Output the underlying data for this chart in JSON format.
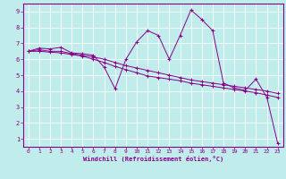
{
  "title": "",
  "xlabel": "Windchill (Refroidissement éolien,°C)",
  "bg_color": "#c0ecec",
  "line_color": "#880088",
  "grid_color": "#ffffff",
  "xlim": [
    -0.5,
    23.5
  ],
  "ylim": [
    0.5,
    9.5
  ],
  "xticks": [
    0,
    1,
    2,
    3,
    4,
    5,
    6,
    7,
    8,
    9,
    10,
    11,
    12,
    13,
    14,
    15,
    16,
    17,
    18,
    19,
    20,
    21,
    22,
    23
  ],
  "yticks": [
    1,
    2,
    3,
    4,
    5,
    6,
    7,
    8,
    9
  ],
  "line1_x": [
    0,
    1,
    2,
    3,
    4,
    5,
    6,
    7,
    8,
    9,
    10,
    11,
    12,
    13,
    14,
    15,
    16,
    17,
    18,
    19,
    20,
    21,
    22,
    23
  ],
  "line1_y": [
    6.5,
    6.7,
    6.65,
    6.75,
    6.4,
    6.35,
    6.25,
    5.5,
    4.15,
    6.0,
    7.1,
    7.8,
    7.5,
    6.0,
    7.5,
    9.1,
    8.5,
    7.8,
    4.5,
    4.2,
    4.05,
    4.75,
    3.6,
    0.7
  ],
  "line2_x": [
    0,
    1,
    2,
    3,
    4,
    5,
    6,
    7,
    8,
    9,
    10,
    11,
    12,
    13,
    14,
    15,
    16,
    17,
    18,
    19,
    20,
    21,
    22,
    23
  ],
  "line2_y": [
    6.5,
    6.6,
    6.5,
    6.5,
    6.35,
    6.25,
    6.15,
    6.0,
    5.8,
    5.6,
    5.45,
    5.3,
    5.15,
    5.0,
    4.85,
    4.7,
    4.6,
    4.5,
    4.4,
    4.3,
    4.2,
    4.1,
    4.0,
    3.85
  ],
  "line3_x": [
    0,
    1,
    2,
    3,
    4,
    5,
    6,
    7,
    8,
    9,
    10,
    11,
    12,
    13,
    14,
    15,
    16,
    17,
    18,
    19,
    20,
    21,
    22,
    23
  ],
  "line3_y": [
    6.5,
    6.5,
    6.45,
    6.4,
    6.3,
    6.2,
    6.0,
    5.8,
    5.55,
    5.35,
    5.15,
    4.95,
    4.85,
    4.75,
    4.65,
    4.5,
    4.4,
    4.3,
    4.2,
    4.1,
    4.0,
    3.9,
    3.75,
    3.6
  ]
}
